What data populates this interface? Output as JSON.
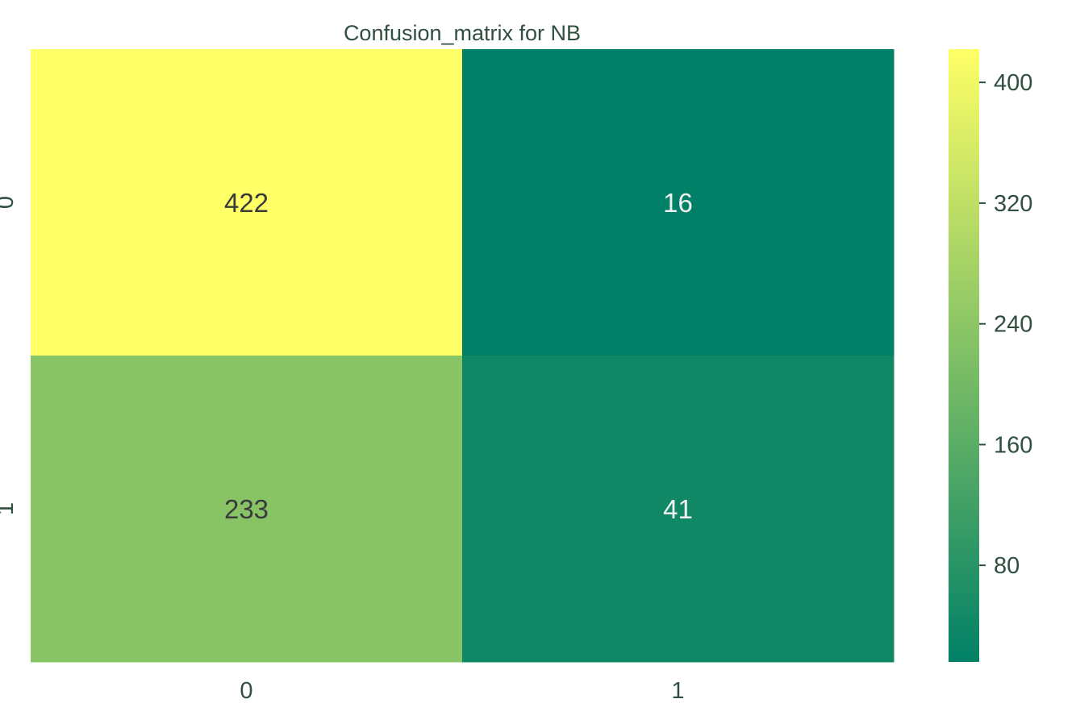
{
  "chart_data": {
    "type": "heatmap",
    "title": "Confusion_matrix for NB",
    "xlabel": "",
    "ylabel": "",
    "x_categories": [
      "0",
      "1"
    ],
    "y_categories": [
      "0",
      "1"
    ],
    "matrix": [
      [
        422,
        16
      ],
      [
        233,
        41
      ]
    ],
    "colorbar": {
      "ticks": [
        80,
        160,
        240,
        320,
        400
      ],
      "tick_labels": [
        "80",
        "160",
        "240",
        "320",
        "400"
      ],
      "range": [
        16,
        422
      ]
    },
    "colormap": "summer",
    "colormap_stops": [
      "#008066",
      "#ffff66"
    ],
    "annotation_colors": {
      "dark": "#3a3a3a",
      "light": "#f2f2f2"
    },
    "grid": false
  }
}
